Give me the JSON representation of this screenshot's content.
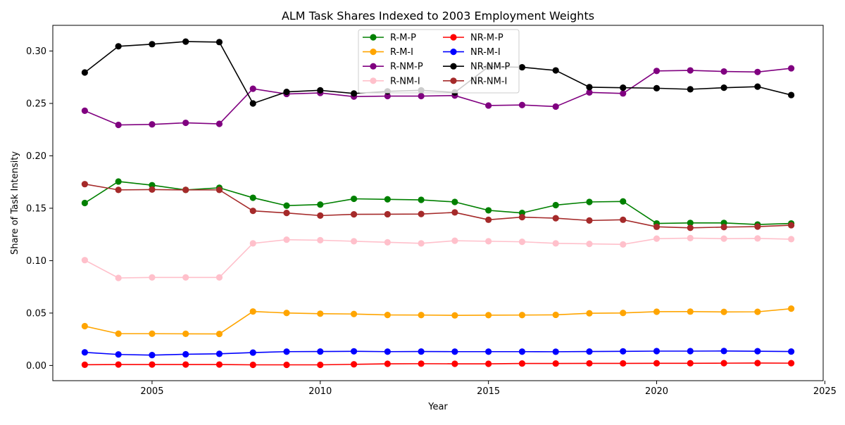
{
  "chart_data": {
    "type": "line",
    "title": "ALM Task Shares Indexed to 2003 Employment Weights",
    "xlabel": "Year",
    "ylabel": "Share of Task Intensity",
    "xlim": [
      2002.05,
      2024.95
    ],
    "ylim": [
      -0.0145,
      0.3245
    ],
    "x_ticks": [
      2005,
      2010,
      2015,
      2020,
      2025
    ],
    "x_tick_labels": [
      "2005",
      "2010",
      "2015",
      "2020",
      "2025"
    ],
    "y_ticks": [
      0.0,
      0.05,
      0.1,
      0.15,
      0.2,
      0.25,
      0.3
    ],
    "y_tick_labels": [
      "0.00",
      "0.05",
      "0.10",
      "0.15",
      "0.20",
      "0.25",
      "0.30"
    ],
    "grid": false,
    "legend_position": "top-center",
    "legend_columns": 2,
    "x": [
      2003,
      2004,
      2005,
      2006,
      2007,
      2008,
      2009,
      2010,
      2011,
      2012,
      2013,
      2014,
      2015,
      2016,
      2017,
      2018,
      2019,
      2020,
      2021,
      2022,
      2023,
      2024
    ],
    "series": [
      {
        "name": "R-M-P",
        "color": "#008000",
        "values": [
          0.155,
          0.1755,
          0.172,
          0.1675,
          0.1695,
          0.16,
          0.1525,
          0.1535,
          0.159,
          0.1585,
          0.158,
          0.156,
          0.148,
          0.1455,
          0.153,
          0.156,
          0.1565,
          0.1355,
          0.136,
          0.136,
          0.1345,
          0.1355
        ]
      },
      {
        "name": "R-M-I",
        "color": "#FFA500",
        "values": [
          0.0375,
          0.0303,
          0.0303,
          0.0302,
          0.0301,
          0.0515,
          0.0501,
          0.0494,
          0.0491,
          0.0482,
          0.0481,
          0.0478,
          0.048,
          0.0481,
          0.0483,
          0.0498,
          0.0501,
          0.0513,
          0.0514,
          0.0511,
          0.0512,
          0.0542
        ]
      },
      {
        "name": "R-NM-P",
        "color": "#800080",
        "values": [
          0.243,
          0.2295,
          0.23,
          0.2315,
          0.2305,
          0.264,
          0.259,
          0.26,
          0.2565,
          0.257,
          0.257,
          0.2575,
          0.248,
          0.2485,
          0.247,
          0.2605,
          0.2595,
          0.281,
          0.2815,
          0.2805,
          0.28,
          0.2835
        ]
      },
      {
        "name": "R-NM-I",
        "color": "#FFC0CB",
        "values": [
          0.1005,
          0.0835,
          0.084,
          0.084,
          0.084,
          0.1165,
          0.12,
          0.1195,
          0.1185,
          0.1175,
          0.1165,
          0.119,
          0.1185,
          0.118,
          0.1165,
          0.116,
          0.1155,
          0.121,
          0.1215,
          0.121,
          0.1212,
          0.1205
        ]
      },
      {
        "name": "NR-M-P",
        "color": "#FF0000",
        "values": [
          0.0007,
          0.0009,
          0.0009,
          0.0009,
          0.0009,
          0.0006,
          0.0006,
          0.0006,
          0.0011,
          0.0016,
          0.0017,
          0.0016,
          0.0016,
          0.0019,
          0.0019,
          0.002,
          0.002,
          0.0021,
          0.0021,
          0.0022,
          0.0023,
          0.0022
        ]
      },
      {
        "name": "NR-M-I",
        "color": "#0000FF",
        "values": [
          0.0125,
          0.0105,
          0.0099,
          0.0107,
          0.0111,
          0.0123,
          0.0132,
          0.0133,
          0.0135,
          0.0132,
          0.0133,
          0.0132,
          0.0132,
          0.0132,
          0.0131,
          0.0133,
          0.0135,
          0.0137,
          0.0137,
          0.0138,
          0.0136,
          0.0133
        ]
      },
      {
        "name": "NR-NM-P",
        "color": "#000000",
        "values": [
          0.2795,
          0.3045,
          0.3065,
          0.309,
          0.3085,
          0.25,
          0.261,
          0.2625,
          0.2595,
          0.2615,
          0.2625,
          0.2605,
          0.285,
          0.2845,
          0.2815,
          0.2655,
          0.265,
          0.2645,
          0.2635,
          0.265,
          0.266,
          0.258
        ]
      },
      {
        "name": "NR-NM-I",
        "color": "#A52A2A",
        "values": [
          0.173,
          0.1675,
          0.1678,
          0.1675,
          0.1675,
          0.1475,
          0.1455,
          0.143,
          0.1442,
          0.1443,
          0.1445,
          0.146,
          0.139,
          0.1415,
          0.1405,
          0.1383,
          0.139,
          0.1323,
          0.1313,
          0.132,
          0.1325,
          0.1338
        ]
      }
    ]
  }
}
